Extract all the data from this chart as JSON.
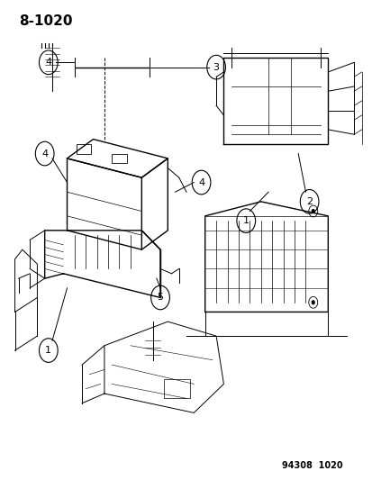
{
  "title": "8-1020",
  "footer": "94308  1020",
  "bg_color": "#ffffff",
  "line_color": "#000000",
  "title_fontsize": 11,
  "footer_fontsize": 7,
  "label_fontsize": 8,
  "figsize": [
    4.14,
    5.33
  ],
  "dpi": 100
}
